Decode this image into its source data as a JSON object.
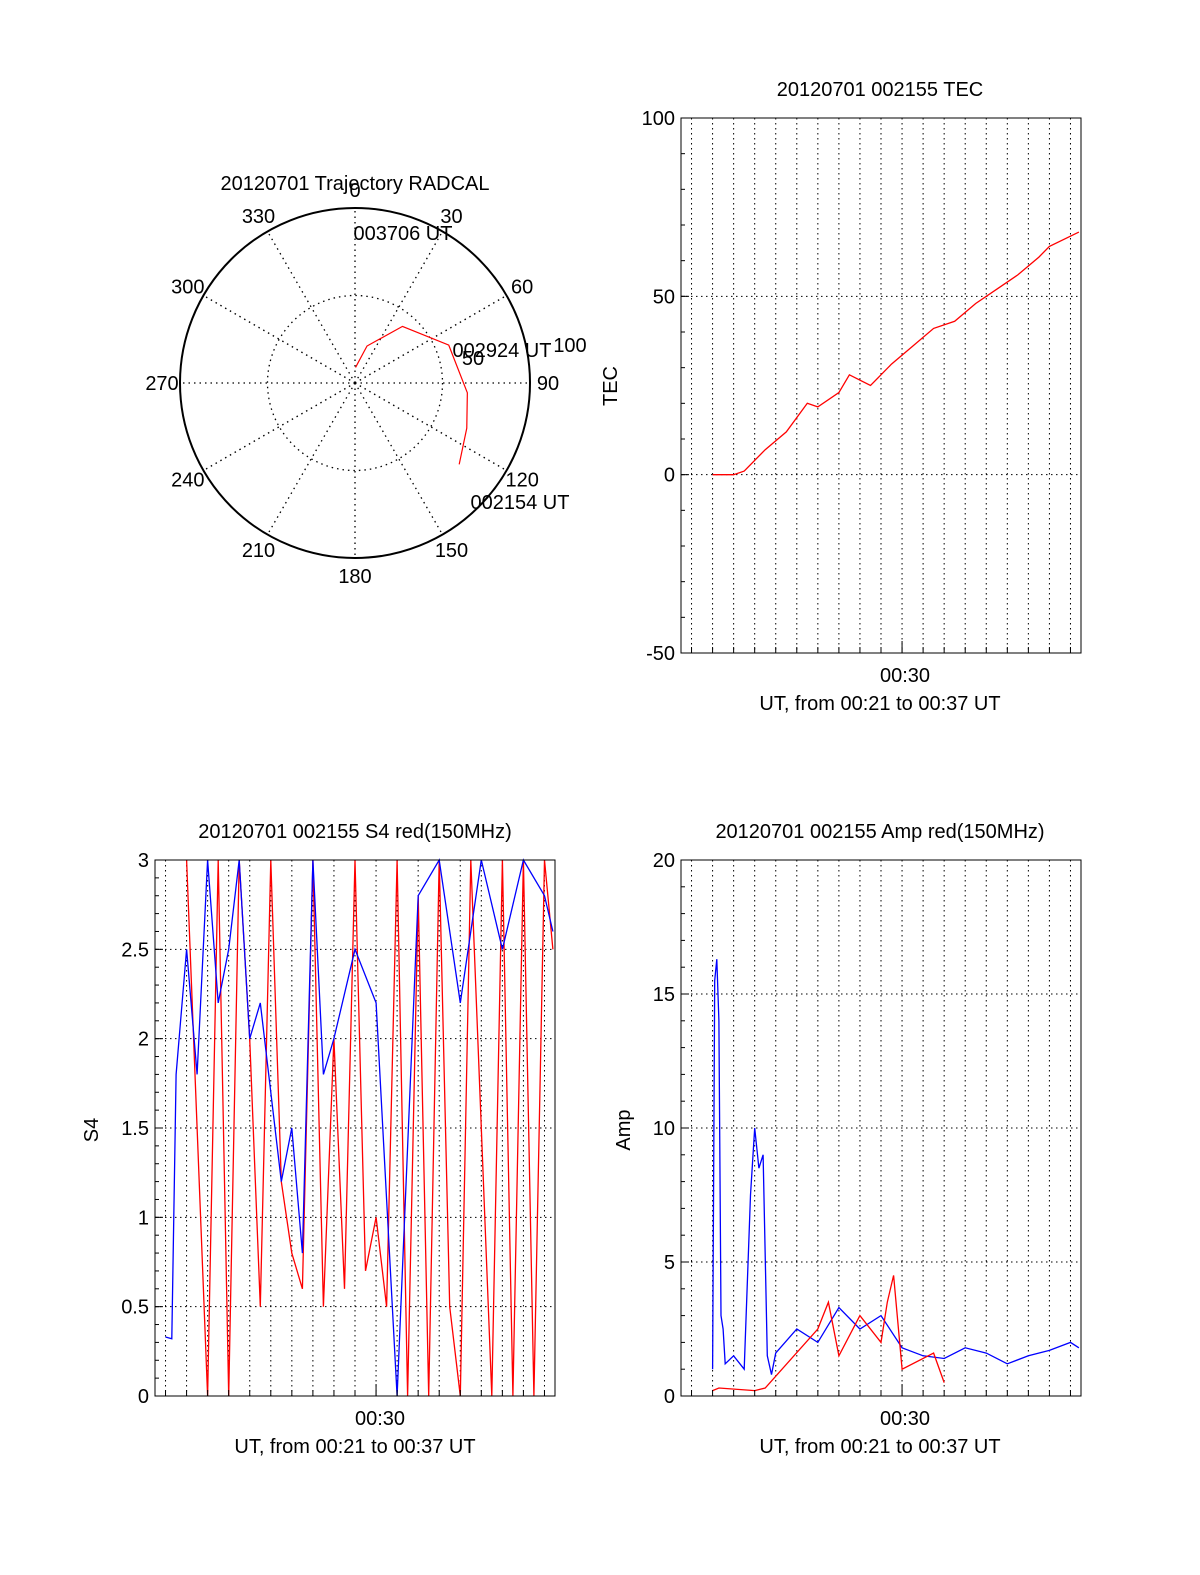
{
  "colors": {
    "red": "#ff0000",
    "blue": "#0000ff",
    "axis": "#000000",
    "grid": "#000000"
  },
  "chart_data": [
    {
      "type": "polar",
      "title": "20120701 Trajectory RADCAL",
      "angle_labels": [
        "0",
        "30",
        "60",
        "90",
        "120",
        "150",
        "180",
        "210",
        "240",
        "270",
        "300",
        "330"
      ],
      "radial_labels": [
        "50",
        "100"
      ],
      "rlim": [
        0,
        100
      ],
      "grid": true,
      "trajectory": {
        "color": "red",
        "points": [
          {
            "azimuth": 2,
            "elevation": 82
          },
          {
            "azimuth": 18,
            "elevation": 70
          },
          {
            "azimuth": 40,
            "elevation": 52
          },
          {
            "azimuth": 68,
            "elevation": 38
          },
          {
            "azimuth": 95,
            "elevation": 32
          },
          {
            "azimuth": 112,
            "elevation": 28
          },
          {
            "azimuth": 128,
            "elevation": 22
          }
        ],
        "annotations": [
          "003706 UT",
          "002924 UT",
          "002154 UT"
        ]
      }
    },
    {
      "type": "line",
      "title": "20120701 002155 TEC",
      "xlabel": "UT, from 00:21 to 00:37 UT",
      "ylabel": "TEC",
      "ylim": [
        -50,
        100
      ],
      "yticks": [
        "-50",
        "0",
        "50",
        "100"
      ],
      "xticks": [
        "00:30"
      ],
      "xlim_minutes": [
        19.5,
        38.5
      ],
      "grid": true,
      "series": [
        {
          "color": "red",
          "x": [
            21.0,
            22.0,
            22.5,
            23.5,
            24.5,
            25.5,
            26.0,
            27.0,
            27.5,
            28.5,
            29.5,
            30.5,
            31.5,
            32.5,
            33.5,
            34.5,
            35.5,
            36.5,
            37.0,
            38.4
          ],
          "y": [
            0,
            0,
            1,
            7,
            12,
            20,
            19,
            23,
            28,
            25,
            31,
            36,
            41,
            43,
            48,
            52,
            56,
            61,
            64,
            68
          ]
        }
      ]
    },
    {
      "type": "line",
      "title": "20120701 002155 S4 red(150MHz)",
      "xlabel": "UT, from 00:21 to 00:37 UT",
      "ylabel": "S4",
      "ylim": [
        0,
        3
      ],
      "yticks": [
        "0",
        "0.5",
        "1",
        "1.5",
        "2",
        "2.5",
        "3"
      ],
      "xticks": [
        "00:30"
      ],
      "xlim_minutes": [
        19.5,
        38.5
      ],
      "grid": true,
      "series": [
        {
          "color": "red",
          "x": [
            21.0,
            21.5,
            22.0,
            22.5,
            23.0,
            23.5,
            24.0,
            24.5,
            25.0,
            25.5,
            26.0,
            26.5,
            27.0,
            27.5,
            28.0,
            28.5,
            29.0,
            29.5,
            30.0,
            30.5,
            31.0,
            31.5,
            32.0,
            32.5,
            33.0,
            33.5,
            34.0,
            34.5,
            35.0,
            35.5,
            36.0,
            36.5,
            37.0,
            37.5,
            38.0,
            38.4
          ],
          "y": [
            3.0,
            1.5,
            0.0,
            3.0,
            0.0,
            3.0,
            2.0,
            0.5,
            3.0,
            1.2,
            0.8,
            0.6,
            3.0,
            0.5,
            2.0,
            0.6,
            3.0,
            0.7,
            1.0,
            0.5,
            3.0,
            0.0,
            2.8,
            0.0,
            3.0,
            0.5,
            0.0,
            3.0,
            1.5,
            0.0,
            3.0,
            0.0,
            3.0,
            0.0,
            3.0,
            2.5
          ]
        },
        {
          "color": "blue",
          "x": [
            20.0,
            20.3,
            20.5,
            21.0,
            21.5,
            22.0,
            22.5,
            23.0,
            23.5,
            24.0,
            24.5,
            25.0,
            25.5,
            26.0,
            26.5,
            27.0,
            27.5,
            28.0,
            29.0,
            30.0,
            31.0,
            32.0,
            33.0,
            34.0,
            35.0,
            36.0,
            37.0,
            38.0,
            38.4
          ],
          "y": [
            0.33,
            0.32,
            1.8,
            2.5,
            1.8,
            3.0,
            2.2,
            2.5,
            3.0,
            2.0,
            2.2,
            1.7,
            1.2,
            1.5,
            0.8,
            3.0,
            1.8,
            2.0,
            2.5,
            2.2,
            0.0,
            2.8,
            3.0,
            2.2,
            3.0,
            2.5,
            3.0,
            2.8,
            2.6
          ]
        }
      ]
    },
    {
      "type": "line",
      "title": "20120701 002155 Amp red(150MHz)",
      "xlabel": "UT, from 00:21 to 00:37 UT",
      "ylabel": "Amp",
      "ylim": [
        0,
        20
      ],
      "yticks": [
        "0",
        "5",
        "10",
        "15",
        "20"
      ],
      "xticks": [
        "00:30"
      ],
      "xlim_minutes": [
        19.5,
        38.5
      ],
      "grid": true,
      "series": [
        {
          "color": "blue",
          "x": [
            21.0,
            21.1,
            21.2,
            21.3,
            21.4,
            21.5,
            21.6,
            22.0,
            22.5,
            22.8,
            23.0,
            23.2,
            23.4,
            23.6,
            23.8,
            24.0,
            25.0,
            26.0,
            27.0,
            28.0,
            29.0,
            30.0,
            31.0,
            32.0,
            33.0,
            34.0,
            35.0,
            36.0,
            37.0,
            38.0,
            38.4
          ],
          "y": [
            1.0,
            15.5,
            16.3,
            14.0,
            3.0,
            2.5,
            1.2,
            1.5,
            1.0,
            7.5,
            10.0,
            8.5,
            9.0,
            1.5,
            0.8,
            1.6,
            2.5,
            2.0,
            3.3,
            2.5,
            3.0,
            1.8,
            1.5,
            1.4,
            1.8,
            1.6,
            1.2,
            1.5,
            1.7,
            2.0,
            1.8
          ]
        },
        {
          "color": "red",
          "x": [
            21.0,
            21.3,
            23.0,
            23.5,
            26.0,
            26.5,
            27.0,
            28.0,
            29.0,
            29.3,
            29.6,
            30.0,
            31.5,
            32.0
          ],
          "y": [
            0.2,
            0.3,
            0.2,
            0.3,
            2.5,
            3.5,
            1.5,
            3.0,
            2.0,
            3.5,
            4.5,
            1.0,
            1.6,
            0.5
          ]
        }
      ]
    }
  ]
}
